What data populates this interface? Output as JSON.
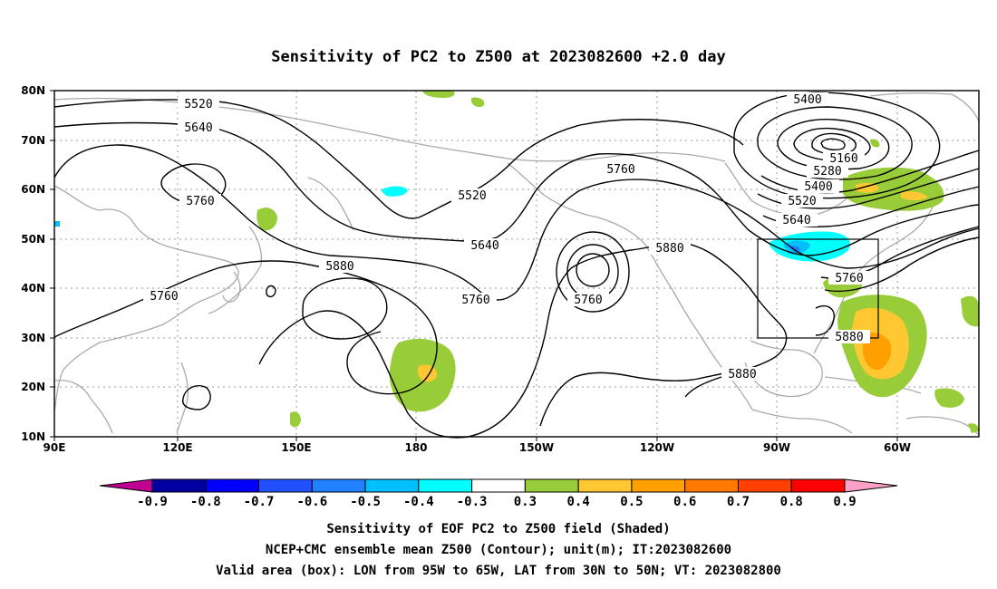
{
  "title": "Sensitivity of PC2 to Z500 at 2023082600 +2.0 day",
  "map": {
    "lat_labels": [
      "80N",
      "70N",
      "60N",
      "50N",
      "40N",
      "30N",
      "20N",
      "10N"
    ],
    "lon_labels": [
      "90E",
      "120E",
      "150E",
      "180",
      "150W",
      "120W",
      "90W",
      "60W"
    ],
    "lon_range": [
      "90E",
      "30W"
    ],
    "lat_range": [
      "10N",
      "80N"
    ],
    "gridlines": "dotted",
    "coastline_color": "#aaaaaa",
    "contour_color": "#000000",
    "box_color": "#000000"
  },
  "contour_labels": [
    {
      "id": "c5520a",
      "text": "5520"
    },
    {
      "id": "c5640a",
      "text": "5640"
    },
    {
      "id": "c5760a",
      "text": "5760"
    },
    {
      "id": "c5520b",
      "text": "5520"
    },
    {
      "id": "c5640b",
      "text": "5640"
    },
    {
      "id": "c5880a",
      "text": "5880"
    },
    {
      "id": "c5760b",
      "text": "5760"
    },
    {
      "id": "c5760c",
      "text": "5760"
    },
    {
      "id": "c5760d",
      "text": "5760"
    },
    {
      "id": "c5760e",
      "text": "5760"
    },
    {
      "id": "c5880b",
      "text": "5880"
    },
    {
      "id": "c5400a",
      "text": "5400"
    },
    {
      "id": "c5160",
      "text": "5160"
    },
    {
      "id": "c5280",
      "text": "5280"
    },
    {
      "id": "c5400b",
      "text": "5400"
    },
    {
      "id": "c5520c",
      "text": "5520"
    },
    {
      "id": "c5640c",
      "text": "5640"
    },
    {
      "id": "c5760f",
      "text": "5760"
    },
    {
      "id": "c5880c",
      "text": "5880"
    },
    {
      "id": "c5880d",
      "text": "5880"
    }
  ],
  "colorbar": {
    "labels": [
      "-0.9",
      "-0.8",
      "-0.7",
      "-0.6",
      "-0.5",
      "-0.4",
      "-0.3",
      "0.3",
      "0.4",
      "0.5",
      "0.6",
      "0.7",
      "0.8",
      "0.9"
    ],
    "colors": [
      "#0000a0",
      "#0000ff",
      "#2050ff",
      "#2080ff",
      "#00c0ff",
      "#00ffff",
      "#ffffff",
      "#98cc38",
      "#ffc832",
      "#ffa000",
      "#ff7800",
      "#ff4000",
      "#ff0000"
    ],
    "low_extend_color": "#c00090",
    "high_extend_color": "#ffa0c8"
  },
  "captions": [
    "Sensitivity of EOF PC2 to Z500 field (Shaded)",
    "NCEP+CMC ensemble mean Z500 (Contour); unit(m); IT:2023082600",
    "Valid area (box): LON from 95W to 65W, LAT from 30N to 50N; VT: 2023082800"
  ]
}
